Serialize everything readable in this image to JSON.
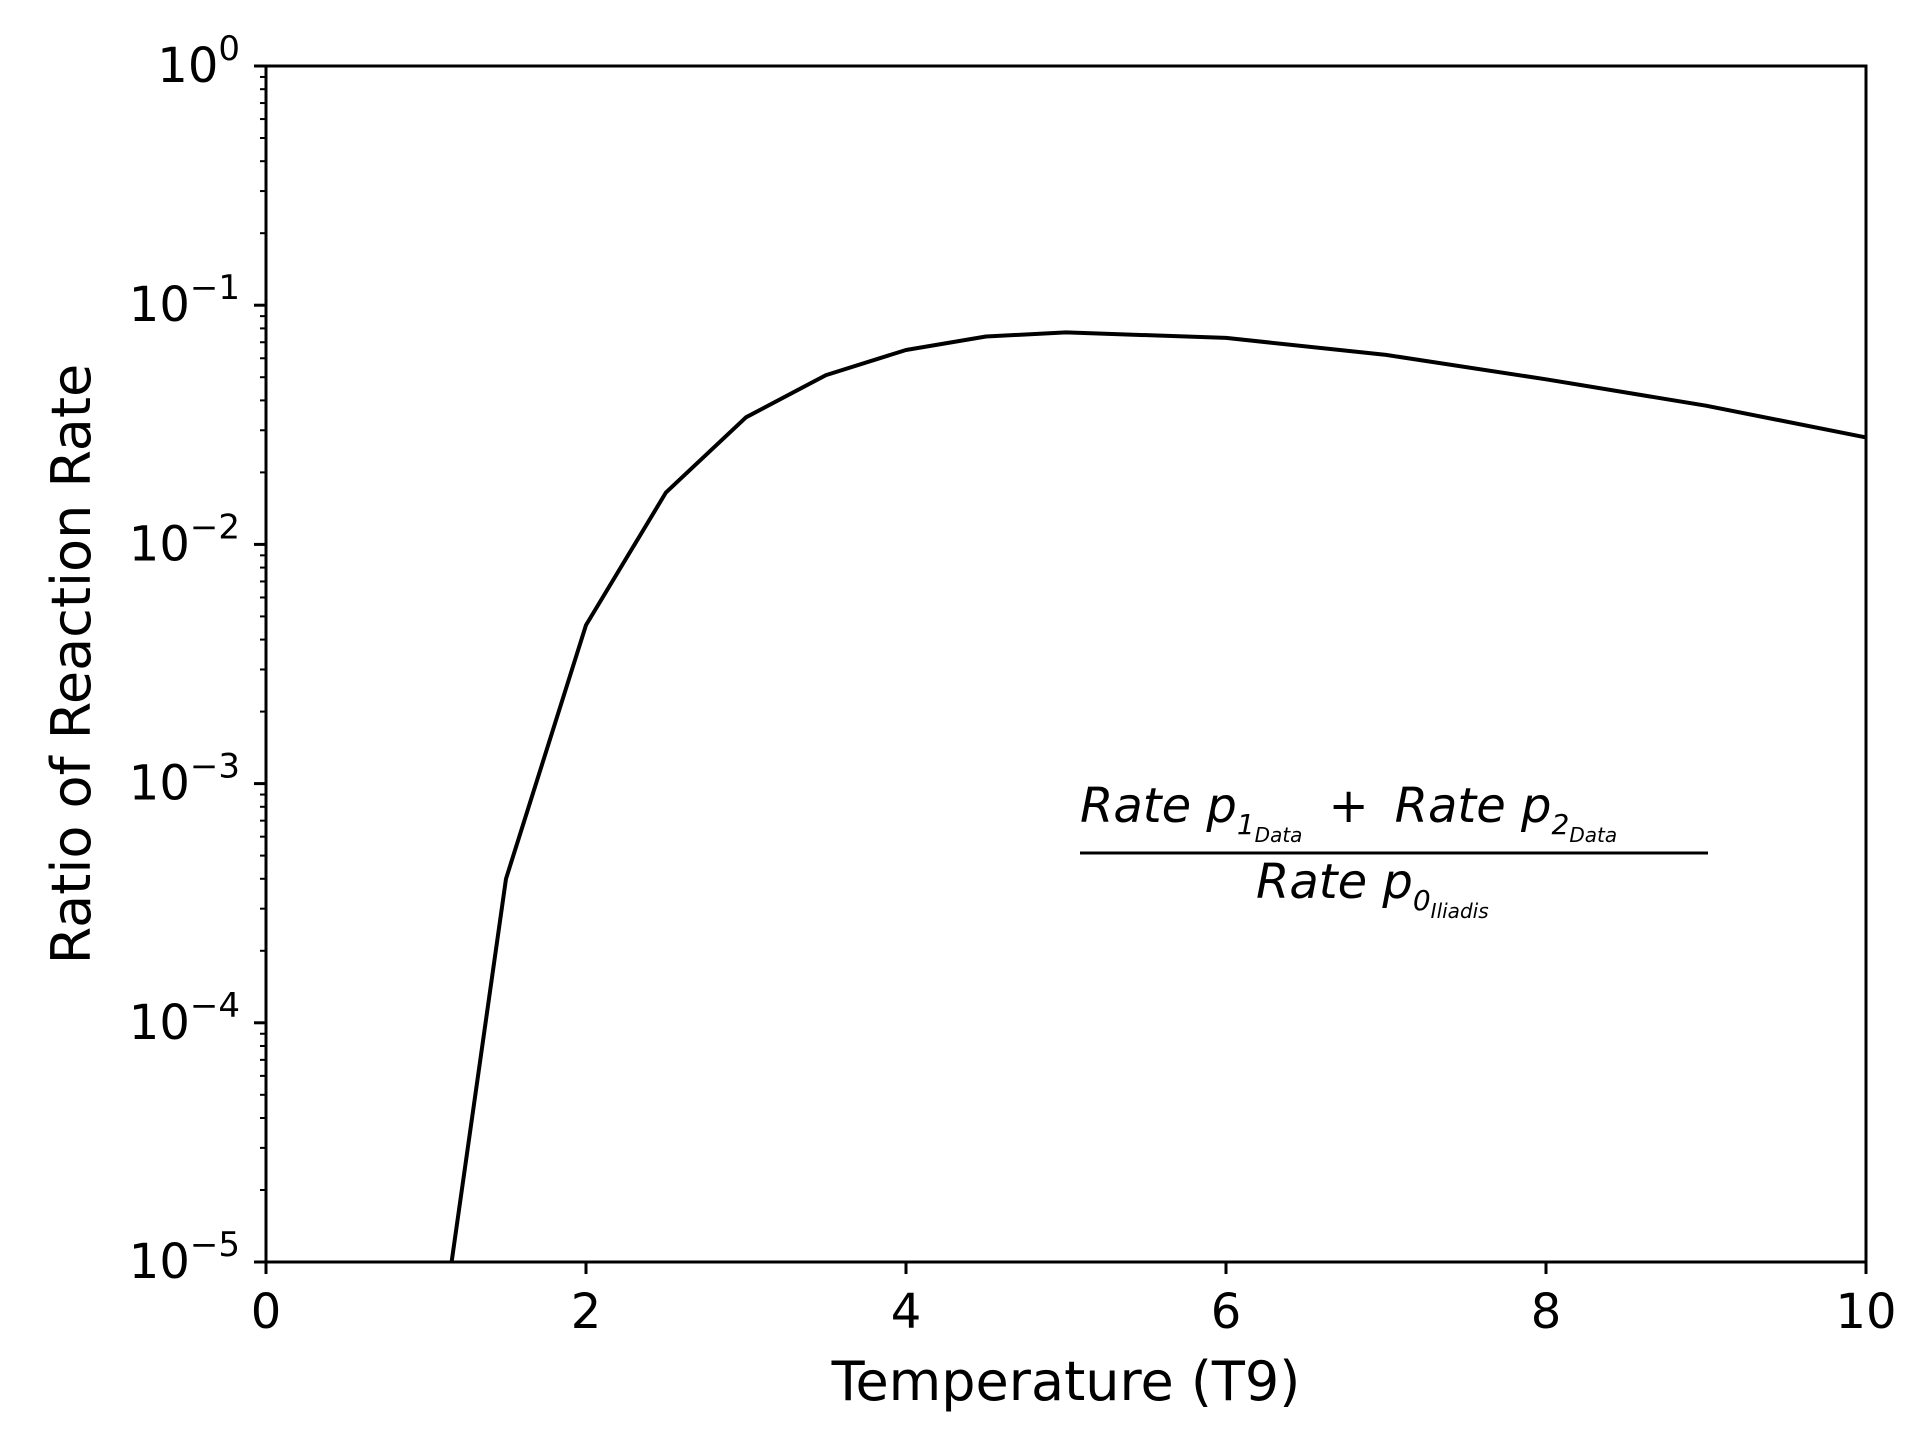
{
  "chart_data": {
    "type": "line",
    "title": "",
    "xlabel": "Temperature (T9)",
    "ylabel": "Ratio of Reaction Rate",
    "xlim": [
      0,
      10
    ],
    "ylim": [
      1e-05,
      1
    ],
    "yscale": "log",
    "grid": false,
    "line_color": "#000000",
    "x_ticks": [
      "0",
      "2",
      "4",
      "6",
      "8",
      "10"
    ],
    "y_ticks": [
      {
        "base": "10",
        "exp": "−5"
      },
      {
        "base": "10",
        "exp": "−4"
      },
      {
        "base": "10",
        "exp": "−3"
      },
      {
        "base": "10",
        "exp": "−2"
      },
      {
        "base": "10",
        "exp": "−1"
      },
      {
        "base": "10",
        "exp": "0"
      }
    ],
    "series": [
      {
        "x": [
          1.16,
          1.5,
          2.0,
          2.5,
          3.0,
          3.5,
          4.0,
          4.5,
          5.0,
          6.0,
          7.0,
          8.0,
          9.0,
          10.0
        ],
        "y": [
          1e-05,
          0.0004,
          0.0046,
          0.0165,
          0.034,
          0.051,
          0.065,
          0.074,
          0.077,
          0.073,
          0.062,
          0.049,
          0.038,
          0.028
        ]
      }
    ],
    "annotation": {
      "numerator_term1": {
        "text": "Rate p",
        "sub": "1",
        "subsub": "Data"
      },
      "operator": "+",
      "numerator_term2": {
        "text": "Rate p",
        "sub": "2",
        "subsub": "Data"
      },
      "denominator": {
        "text": "Rate p",
        "sub": "0",
        "subsub": "Iliadis"
      }
    }
  }
}
